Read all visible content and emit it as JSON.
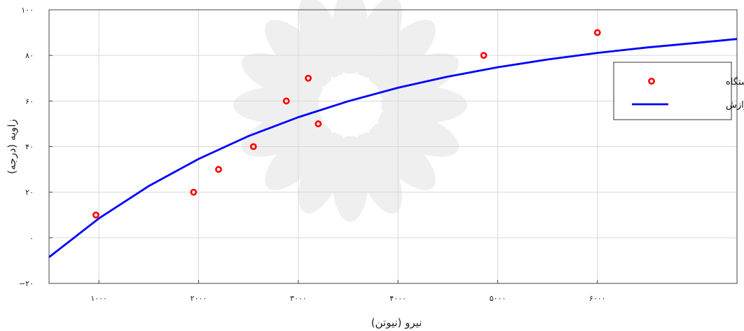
{
  "chart_data": {
    "type": "scatter",
    "title": "",
    "xlabel": "نیرو (نیوتن)",
    "ylabel": "زاویه (درجه)",
    "xlim": [
      500,
      7400
    ],
    "ylim": [
      -20,
      100
    ],
    "grid": true,
    "legend_position": "right",
    "x_ticks": [
      {
        "value": 1000,
        "label": "۱۰۰۰"
      },
      {
        "value": 2000,
        "label": "۲۰۰۰"
      },
      {
        "value": 3000,
        "label": "۳۰۰۰"
      },
      {
        "value": 4000,
        "label": "۴۰۰۰"
      },
      {
        "value": 5000,
        "label": "۵۰۰۰"
      },
      {
        "value": 6000,
        "label": "۶۰۰۰"
      }
    ],
    "y_ticks": [
      {
        "value": -20,
        "label": "−۲۰"
      },
      {
        "value": 0,
        "label": "۰"
      },
      {
        "value": 20,
        "label": "۲۰"
      },
      {
        "value": 40,
        "label": "۴۰"
      },
      {
        "value": 60,
        "label": "۶۰"
      },
      {
        "value": 80,
        "label": "۸۰"
      },
      {
        "value": 100,
        "label": "۱۰۰"
      }
    ],
    "series": [
      {
        "name": "نتایج دستگاه",
        "kind": "markers",
        "color": "#ff0000",
        "x": [
          970,
          1950,
          2200,
          2550,
          3200,
          2880,
          3100,
          4860,
          6000
        ],
        "y": [
          10,
          20,
          30,
          40,
          50,
          60,
          70,
          80,
          90
        ]
      },
      {
        "name": "منحنی برازش",
        "kind": "line",
        "color": "#0000ff",
        "x": [
          500,
          1000,
          1500,
          2000,
          2500,
          3000,
          3500,
          4000,
          4500,
          5000,
          5500,
          6000,
          6500,
          7000,
          7400
        ],
        "y": [
          -8.5,
          8.5,
          22.7,
          34.6,
          44.6,
          52.9,
          59.9,
          65.8,
          70.7,
          74.8,
          78.2,
          81.1,
          83.5,
          85.5,
          87.2
        ]
      }
    ]
  }
}
